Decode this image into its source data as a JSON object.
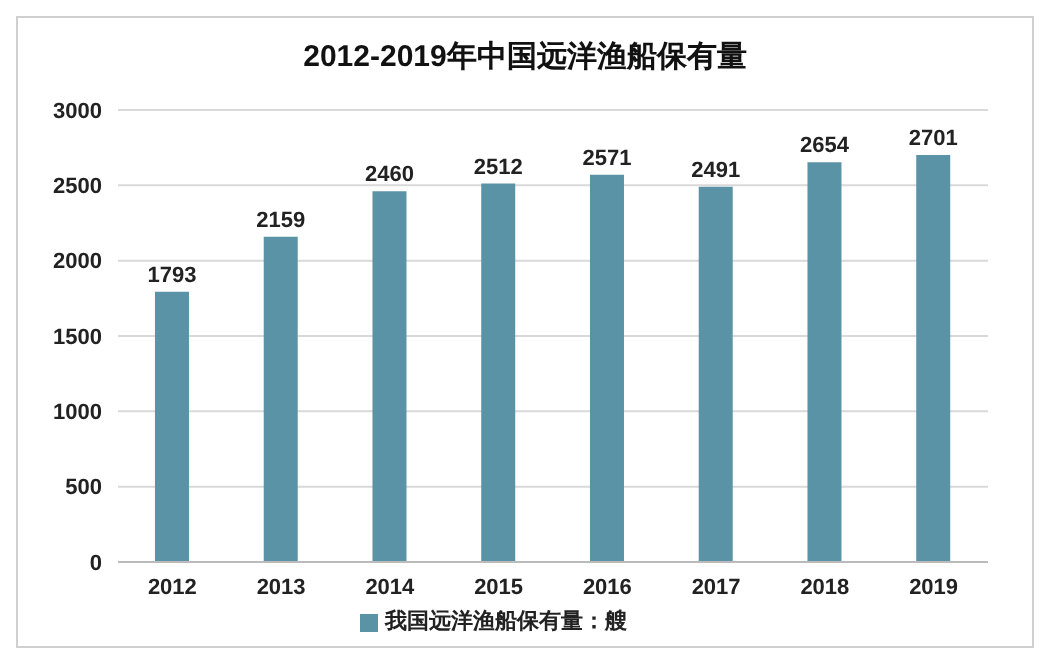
{
  "chart_data": {
    "type": "bar",
    "title": "2012-2019年中国远洋渔船保有量",
    "categories": [
      "2012",
      "2013",
      "2014",
      "2015",
      "2016",
      "2017",
      "2018",
      "2019"
    ],
    "series": [
      {
        "name": "我国远洋渔船保有量：艘",
        "color": "#5b93a6",
        "values": [
          1793,
          2159,
          2460,
          2512,
          2571,
          2491,
          2654,
          2701
        ]
      }
    ],
    "ylim": [
      0,
      3000
    ],
    "yticks": [
      0,
      500,
      1000,
      1500,
      2000,
      2500,
      3000
    ],
    "grid": "y",
    "legend": "bottom",
    "data_labels": true
  }
}
